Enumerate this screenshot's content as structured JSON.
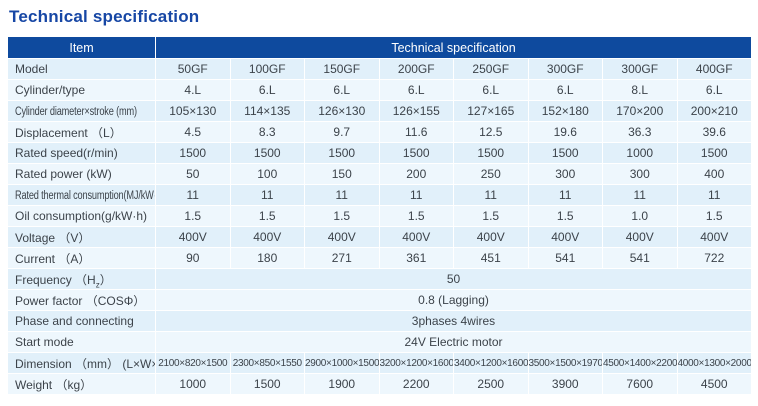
{
  "page_title": "Technical specification",
  "colors": {
    "header_bg": "#0e4a9e",
    "title_text": "#1747a5",
    "row_stripe_blue": "#e1f0fa",
    "row_stripe_light": "#eef7fd",
    "body_text": "#3c434a"
  },
  "table": {
    "header": {
      "item_label": "Item",
      "spec_label": "Technical specification"
    },
    "rows": [
      {
        "label": "Model",
        "values": [
          "50GF",
          "100GF",
          "150GF",
          "200GF",
          "250GF",
          "300GF",
          "300GF",
          "400GF"
        ]
      },
      {
        "label": "Cylinder/type",
        "values": [
          "4.L",
          "6.L",
          "6.L",
          "6.L",
          "6.L",
          "6.L",
          "8.L",
          "6.L"
        ]
      },
      {
        "label": "Cylinder diameter×stroke (mm)",
        "values": [
          "105×130",
          "114×135",
          "126×130",
          "126×155",
          "127×165",
          "152×180",
          "170×200",
          "200×210"
        ]
      },
      {
        "label": "Displacement （L）",
        "values": [
          "4.5",
          "8.3",
          "9.7",
          "11.6",
          "12.5",
          "19.6",
          "36.3",
          "39.6"
        ]
      },
      {
        "label": "Rated speed(r/min)",
        "values": [
          "1500",
          "1500",
          "1500",
          "1500",
          "1500",
          "1500",
          "1000",
          "1500"
        ]
      },
      {
        "label": "Rated power (kW)",
        "values": [
          "50",
          "100",
          "150",
          "200",
          "250",
          "300",
          "300",
          "400"
        ]
      },
      {
        "label": "Rated thermal consumption(MJ/kW·h)",
        "values": [
          "11",
          "11",
          "11",
          "11",
          "11",
          "11",
          "11",
          "11"
        ]
      },
      {
        "label": "Oil consumption(g/kW·h)",
        "values": [
          "1.5",
          "1.5",
          "1.5",
          "1.5",
          "1.5",
          "1.5",
          "1.0",
          "1.5"
        ]
      },
      {
        "label": "Voltage （V）",
        "values": [
          "400V",
          "400V",
          "400V",
          "400V",
          "400V",
          "400V",
          "400V",
          "400V"
        ]
      },
      {
        "label": "Current （A）",
        "values": [
          "90",
          "180",
          "271",
          "361",
          "451",
          "541",
          "541",
          "722"
        ]
      },
      {
        "label_pre": "Frequency （H",
        "label_sub": "z",
        "label_post": "）",
        "merged": "50"
      },
      {
        "label": "Power factor （COSΦ）",
        "merged": "0.8 (Lagging)"
      },
      {
        "label": "Phase and connecting",
        "merged": "3phases 4wires"
      },
      {
        "label": "Start mode",
        "merged": "24V Electric motor"
      },
      {
        "label": "Dimension （mm）  (L×W×H)",
        "values": [
          "2100×820×1500",
          "2300×850×1550",
          "2900×1000×1500",
          "3200×1200×1600",
          "3400×1200×1600",
          "3500×1500×1970",
          "4500×1400×2200",
          "4000×1300×2000"
        ]
      },
      {
        "label": "Weight （kg）",
        "values": [
          "1000",
          "1500",
          "1900",
          "2200",
          "2500",
          "3900",
          "7600",
          "4500"
        ]
      }
    ]
  }
}
